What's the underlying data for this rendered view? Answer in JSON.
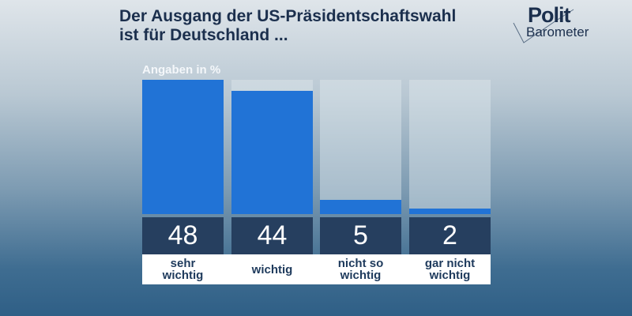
{
  "title_line1": "Der Ausgang der US-Präsidentschaftswahl",
  "title_line2": "ist für Deutschland ...",
  "logo": {
    "line1": "Polit",
    "line2": "Barometer"
  },
  "chart_data": {
    "type": "bar",
    "unit_label": "Angaben in %",
    "categories": [
      "sehr\nwichtig",
      "wichtig",
      "nicht so\nwichtig",
      "gar nicht\nwichtig"
    ],
    "values": [
      48,
      44,
      5,
      2
    ],
    "ylim": [
      0,
      48
    ],
    "bar_color": "#2173d6",
    "value_box_color": "#263f5f"
  }
}
